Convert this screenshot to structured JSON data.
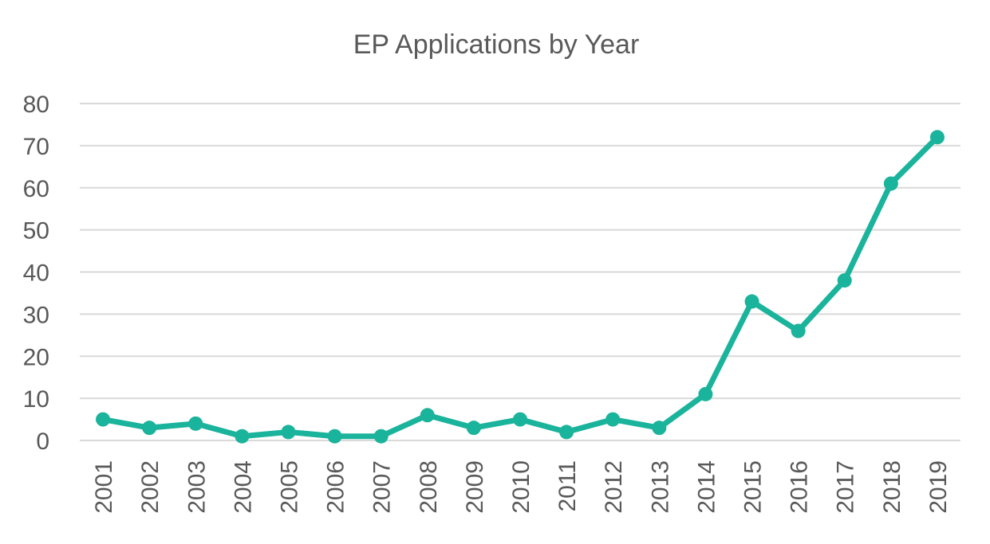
{
  "chart_data": {
    "type": "line",
    "title": "EP Applications by Year",
    "xlabel": "",
    "ylabel": "",
    "ylim": [
      0,
      80
    ],
    "yticks": [
      0,
      10,
      20,
      30,
      40,
      50,
      60,
      70,
      80
    ],
    "grid": true,
    "x": [
      "2001",
      "2002",
      "2003",
      "2004",
      "2005",
      "2006",
      "2007",
      "2008",
      "2009",
      "2010",
      "2011",
      "2012",
      "2013",
      "2014",
      "2015",
      "2016",
      "2017",
      "2018",
      "2019"
    ],
    "series": [
      {
        "color": "#1ab39b",
        "values": [
          5,
          3,
          4,
          1,
          2,
          1,
          1,
          6,
          3,
          5,
          2,
          5,
          3,
          11,
          33,
          26,
          38,
          61,
          72
        ]
      }
    ]
  }
}
